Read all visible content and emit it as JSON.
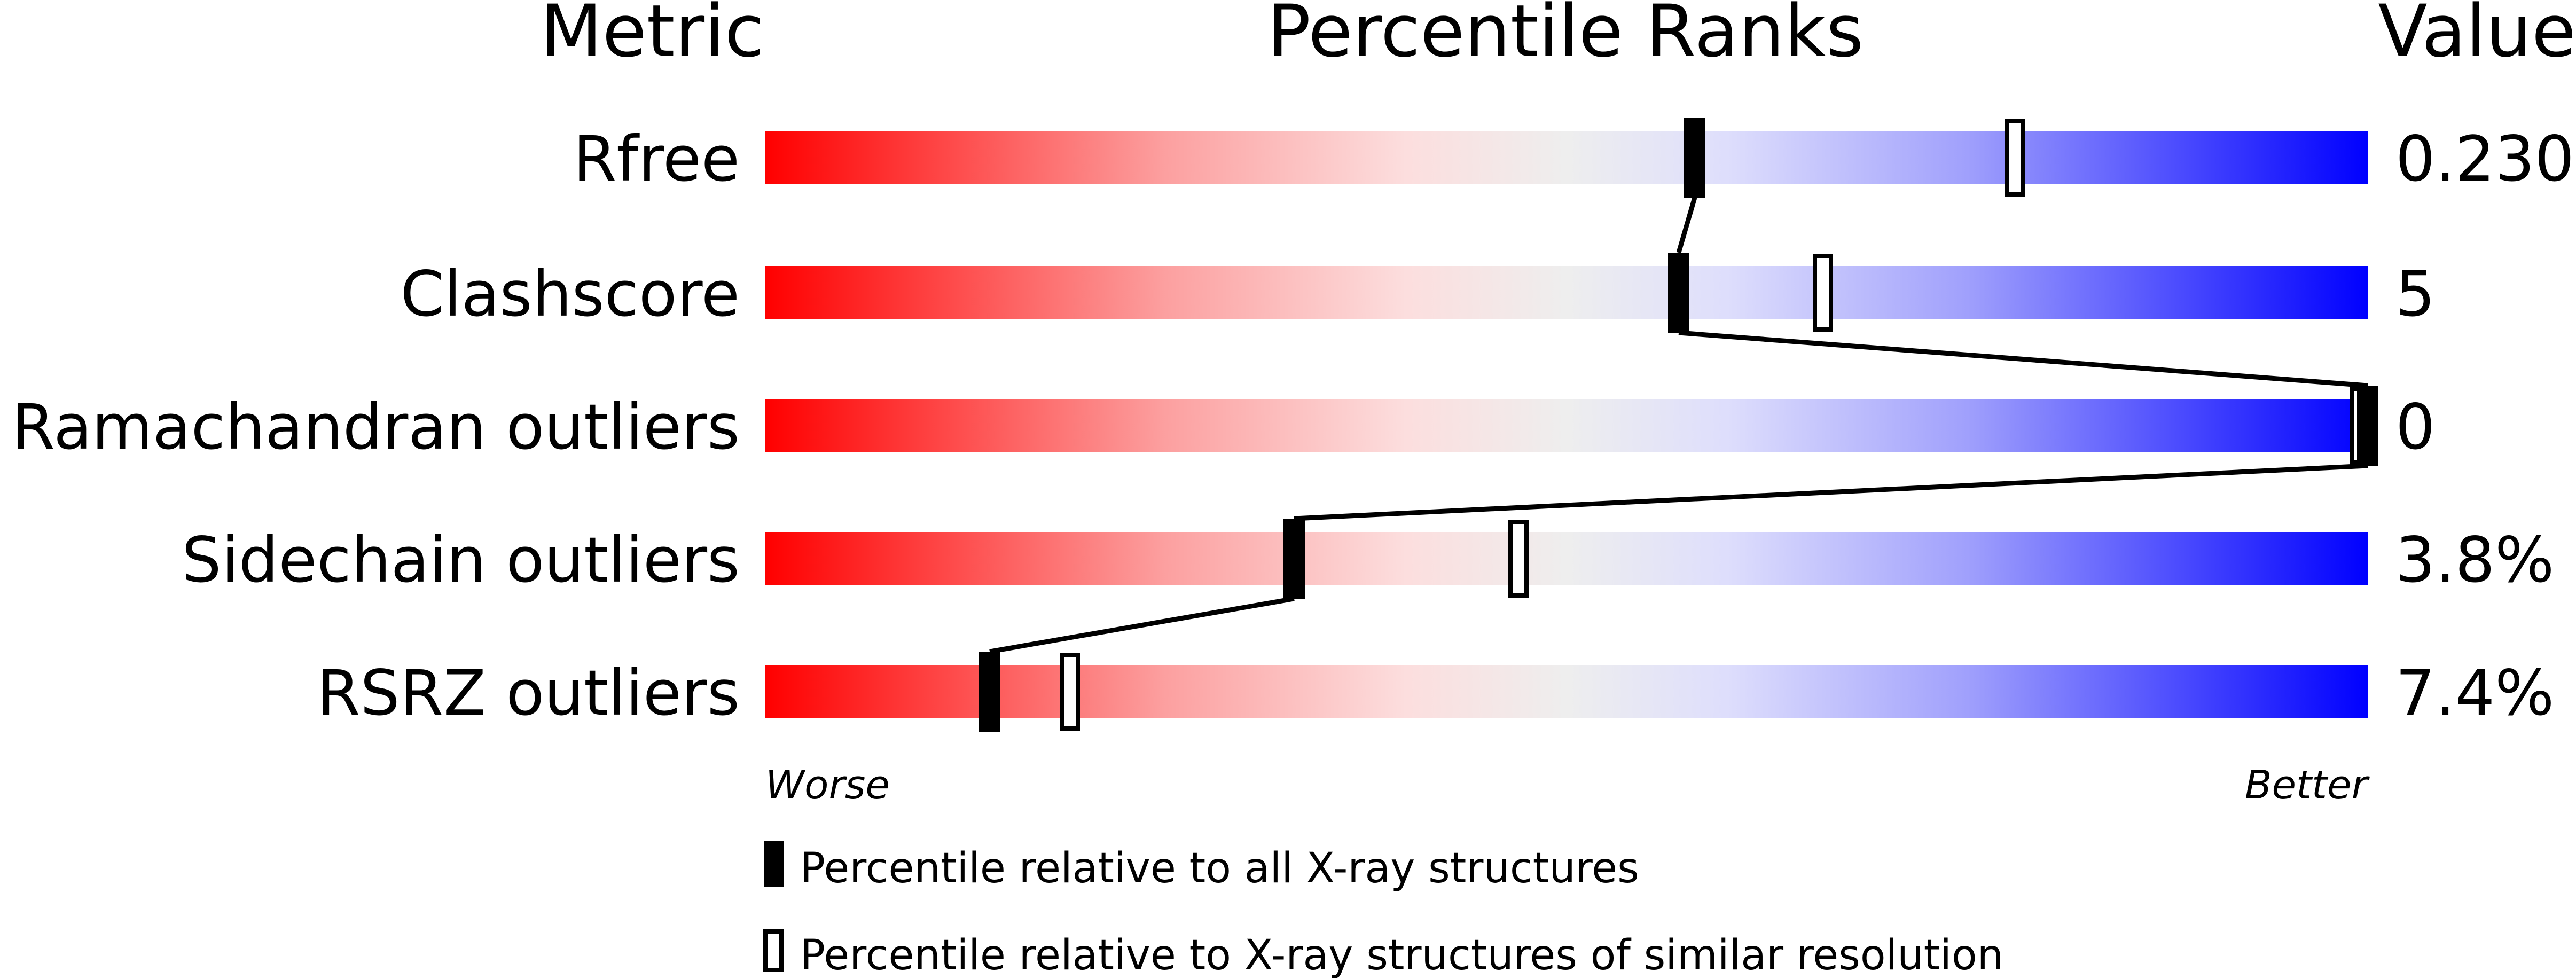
{
  "chart_data": {
    "type": "percentile-slider",
    "headers": {
      "metric": "Metric",
      "ranks": "Percentile Ranks",
      "value": "Value"
    },
    "xlim": [
      0,
      100
    ],
    "rows": [
      {
        "metric": "Rfree",
        "value": "0.230",
        "percentile_all": 58,
        "percentile_similar": 78
      },
      {
        "metric": "Clashscore",
        "value": "5",
        "percentile_all": 57,
        "percentile_similar": 66
      },
      {
        "metric": "Ramachandran outliers",
        "value": "0",
        "percentile_all": 100,
        "percentile_similar": 100
      },
      {
        "metric": "Sidechain outliers",
        "value": "3.8%",
        "percentile_all": 33,
        "percentile_similar": 47
      },
      {
        "metric": "RSRZ outliers",
        "value": "7.4%",
        "percentile_all": 14,
        "percentile_similar": 19
      }
    ],
    "axis": {
      "worse": "Worse",
      "better": "Better"
    },
    "legend": [
      {
        "marker": "filled",
        "label": "Percentile relative to all X-ray structures"
      },
      {
        "marker": "open",
        "label": "Percentile relative to X-ray structures of similar resolution"
      }
    ],
    "colors": {
      "worse": "#ff0000",
      "mid": "#eeeeee",
      "better": "#0000ff",
      "marker": "#000000"
    }
  }
}
